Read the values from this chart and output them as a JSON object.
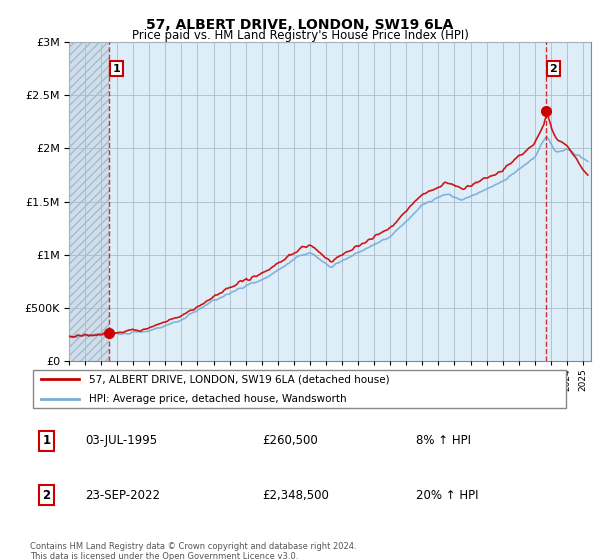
{
  "title": "57, ALBERT DRIVE, LONDON, SW19 6LA",
  "subtitle": "Price paid vs. HM Land Registry's House Price Index (HPI)",
  "ylim": [
    0,
    3000000
  ],
  "xlim_start": 1993,
  "xlim_end": 2025.5,
  "sale1_x": 1995.5,
  "sale1_price": 260500,
  "sale2_x": 2022.72,
  "sale2_price": 2348500,
  "line_color_property": "#cc0000",
  "line_color_hpi": "#7aadd4",
  "background_color": "#ddeeff",
  "hatch_color": "#bbccdd",
  "grid_color": "#bbccdd",
  "annotation_box_color": "#cc0000",
  "footer_text": "Contains HM Land Registry data © Crown copyright and database right 2024.\nThis data is licensed under the Open Government Licence v3.0.",
  "legend_label_property": "57, ALBERT DRIVE, LONDON, SW19 6LA (detached house)",
  "legend_label_hpi": "HPI: Average price, detached house, Wandsworth",
  "table_rows": [
    {
      "label": "1",
      "date": "03-JUL-1995",
      "price": "£260,500",
      "hpi": "8% ↑ HPI"
    },
    {
      "label": "2",
      "date": "23-SEP-2022",
      "price": "£2,348,500",
      "hpi": "20% ↑ HPI"
    }
  ]
}
